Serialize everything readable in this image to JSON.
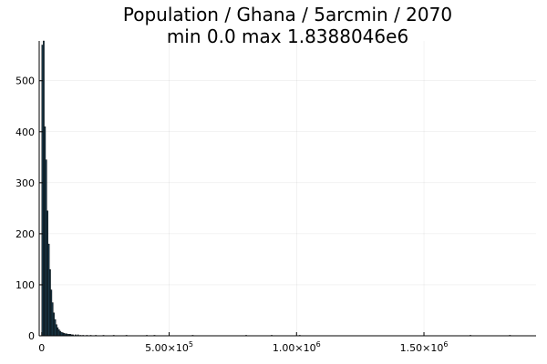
{
  "chart_data": {
    "type": "bar",
    "title": "Population / Ghana / 5arcmin / 2070",
    "subtitle": "min 0.0  max 1.8388046e6",
    "xlabel": "",
    "ylabel": "",
    "xlim": [
      -10000,
      1940000
    ],
    "ylim": [
      0,
      578
    ],
    "grid": true,
    "legend": "none",
    "bar_color": "#1b3a4b",
    "bin_width": 5000,
    "x_ticks": [
      {
        "value": 0,
        "label": "0"
      },
      {
        "value": 500000,
        "mantissa": "5.00×10",
        "exp": "5"
      },
      {
        "value": 1000000,
        "mantissa": "1.00×10",
        "exp": "6"
      },
      {
        "value": 1500000,
        "mantissa": "1.50×10",
        "exp": "6"
      }
    ],
    "y_ticks": [
      0,
      100,
      200,
      300,
      400,
      500
    ],
    "bins": [
      {
        "x": 0,
        "y": 570
      },
      {
        "x": 5000,
        "y": 578
      },
      {
        "x": 10000,
        "y": 410
      },
      {
        "x": 15000,
        "y": 345
      },
      {
        "x": 20000,
        "y": 245
      },
      {
        "x": 25000,
        "y": 180
      },
      {
        "x": 30000,
        "y": 130
      },
      {
        "x": 35000,
        "y": 90
      },
      {
        "x": 40000,
        "y": 65
      },
      {
        "x": 45000,
        "y": 45
      },
      {
        "x": 50000,
        "y": 32
      },
      {
        "x": 55000,
        "y": 22
      },
      {
        "x": 60000,
        "y": 16
      },
      {
        "x": 65000,
        "y": 12
      },
      {
        "x": 70000,
        "y": 9
      },
      {
        "x": 75000,
        "y": 7
      },
      {
        "x": 80000,
        "y": 6
      },
      {
        "x": 85000,
        "y": 5
      },
      {
        "x": 90000,
        "y": 4
      },
      {
        "x": 95000,
        "y": 4
      },
      {
        "x": 100000,
        "y": 3
      },
      {
        "x": 105000,
        "y": 3
      },
      {
        "x": 110000,
        "y": 3
      },
      {
        "x": 115000,
        "y": 2
      },
      {
        "x": 120000,
        "y": 2
      },
      {
        "x": 130000,
        "y": 2
      },
      {
        "x": 140000,
        "y": 2
      },
      {
        "x": 150000,
        "y": 1
      },
      {
        "x": 160000,
        "y": 1
      },
      {
        "x": 175000,
        "y": 1
      },
      {
        "x": 190000,
        "y": 1
      },
      {
        "x": 210000,
        "y": 1
      },
      {
        "x": 240000,
        "y": 1
      },
      {
        "x": 280000,
        "y": 1
      },
      {
        "x": 330000,
        "y": 1
      },
      {
        "x": 410000,
        "y": 1
      },
      {
        "x": 440000,
        "y": 1
      },
      {
        "x": 590000,
        "y": 1
      },
      {
        "x": 800000,
        "y": 1
      },
      {
        "x": 900000,
        "y": 1
      },
      {
        "x": 1010000,
        "y": 1
      },
      {
        "x": 1680000,
        "y": 1
      },
      {
        "x": 1835000,
        "y": 1
      }
    ]
  }
}
